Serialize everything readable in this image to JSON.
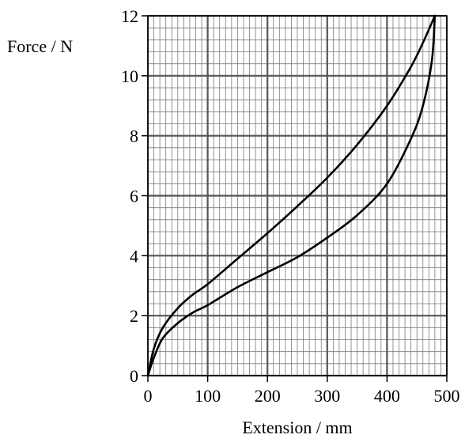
{
  "chart_data": {
    "type": "line",
    "title": "",
    "xlabel": "Extension / mm",
    "ylabel": "Force / N",
    "xlim": [
      0,
      500
    ],
    "ylim": [
      0,
      12
    ],
    "x_ticks": [
      "0",
      "100",
      "200",
      "300",
      "400",
      "500"
    ],
    "y_ticks": [
      "0",
      "2",
      "4",
      "6",
      "8",
      "10",
      "12"
    ],
    "grid": {
      "major_x": 100,
      "major_y": 2,
      "minor_x": 10,
      "minor_y": 0.4
    },
    "series": [
      {
        "values": [
          [
            0,
            0
          ],
          [
            10,
            0.9
          ],
          [
            25,
            1.6
          ],
          [
            50,
            2.25
          ],
          [
            75,
            2.7
          ],
          [
            100,
            3.05
          ],
          [
            150,
            3.9
          ],
          [
            200,
            4.75
          ],
          [
            250,
            5.65
          ],
          [
            300,
            6.6
          ],
          [
            350,
            7.7
          ],
          [
            400,
            9.0
          ],
          [
            440,
            10.3
          ],
          [
            460,
            11.1
          ],
          [
            480,
            12.0
          ]
        ]
      },
      {
        "values": [
          [
            0,
            0
          ],
          [
            10,
            0.6
          ],
          [
            25,
            1.25
          ],
          [
            50,
            1.75
          ],
          [
            75,
            2.1
          ],
          [
            100,
            2.35
          ],
          [
            150,
            2.95
          ],
          [
            200,
            3.45
          ],
          [
            250,
            3.95
          ],
          [
            300,
            4.6
          ],
          [
            350,
            5.35
          ],
          [
            400,
            6.4
          ],
          [
            440,
            7.9
          ],
          [
            460,
            9.0
          ],
          [
            475,
            10.5
          ],
          [
            480,
            12.0
          ]
        ]
      }
    ]
  }
}
